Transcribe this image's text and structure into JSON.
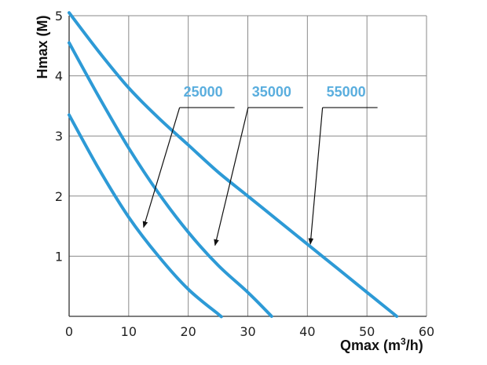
{
  "chart_data": {
    "type": "line",
    "title": "",
    "xlabel": "Qmax (m",
    "xlabel_sup": "3",
    "xlabel_tail": "/h)",
    "ylabel": "Hmax (M)",
    "xlim": [
      0,
      60
    ],
    "ylim": [
      0,
      5
    ],
    "x_ticks": [
      "0",
      "10",
      "20",
      "30",
      "40",
      "50",
      "60"
    ],
    "y_ticks": [
      "1",
      "2",
      "3",
      "4",
      "5"
    ],
    "grid": true,
    "line_color": "#2d9ad6",
    "label_color": "#5aaede",
    "series": [
      {
        "name": "25000",
        "x": [
          0,
          5,
          10,
          15,
          20,
          25,
          25.5
        ],
        "y": [
          3.35,
          2.45,
          1.65,
          1.0,
          0.45,
          0.04,
          0
        ]
      },
      {
        "name": "35000",
        "x": [
          0,
          5,
          10,
          15,
          20,
          25,
          30,
          34
        ],
        "y": [
          4.55,
          3.65,
          2.8,
          2.05,
          1.4,
          0.85,
          0.4,
          0
        ]
      },
      {
        "name": "55000",
        "x": [
          0,
          5,
          10,
          15,
          20,
          25,
          30,
          35,
          40,
          45,
          50,
          55
        ],
        "y": [
          5.05,
          4.4,
          3.8,
          3.3,
          2.85,
          2.4,
          2.0,
          1.6,
          1.2,
          0.8,
          0.4,
          0
        ]
      }
    ],
    "annotations": [
      {
        "series": "25000",
        "label_x": 22.5,
        "label_y": 3.55,
        "point_x": 12.5,
        "point_y": 1.48
      },
      {
        "series": "35000",
        "label_x": 34,
        "label_y": 3.55,
        "point_x": 24.5,
        "point_y": 1.18
      },
      {
        "series": "55000",
        "label_x": 46.5,
        "label_y": 3.55,
        "point_x": 40.5,
        "point_y": 1.2
      }
    ]
  }
}
